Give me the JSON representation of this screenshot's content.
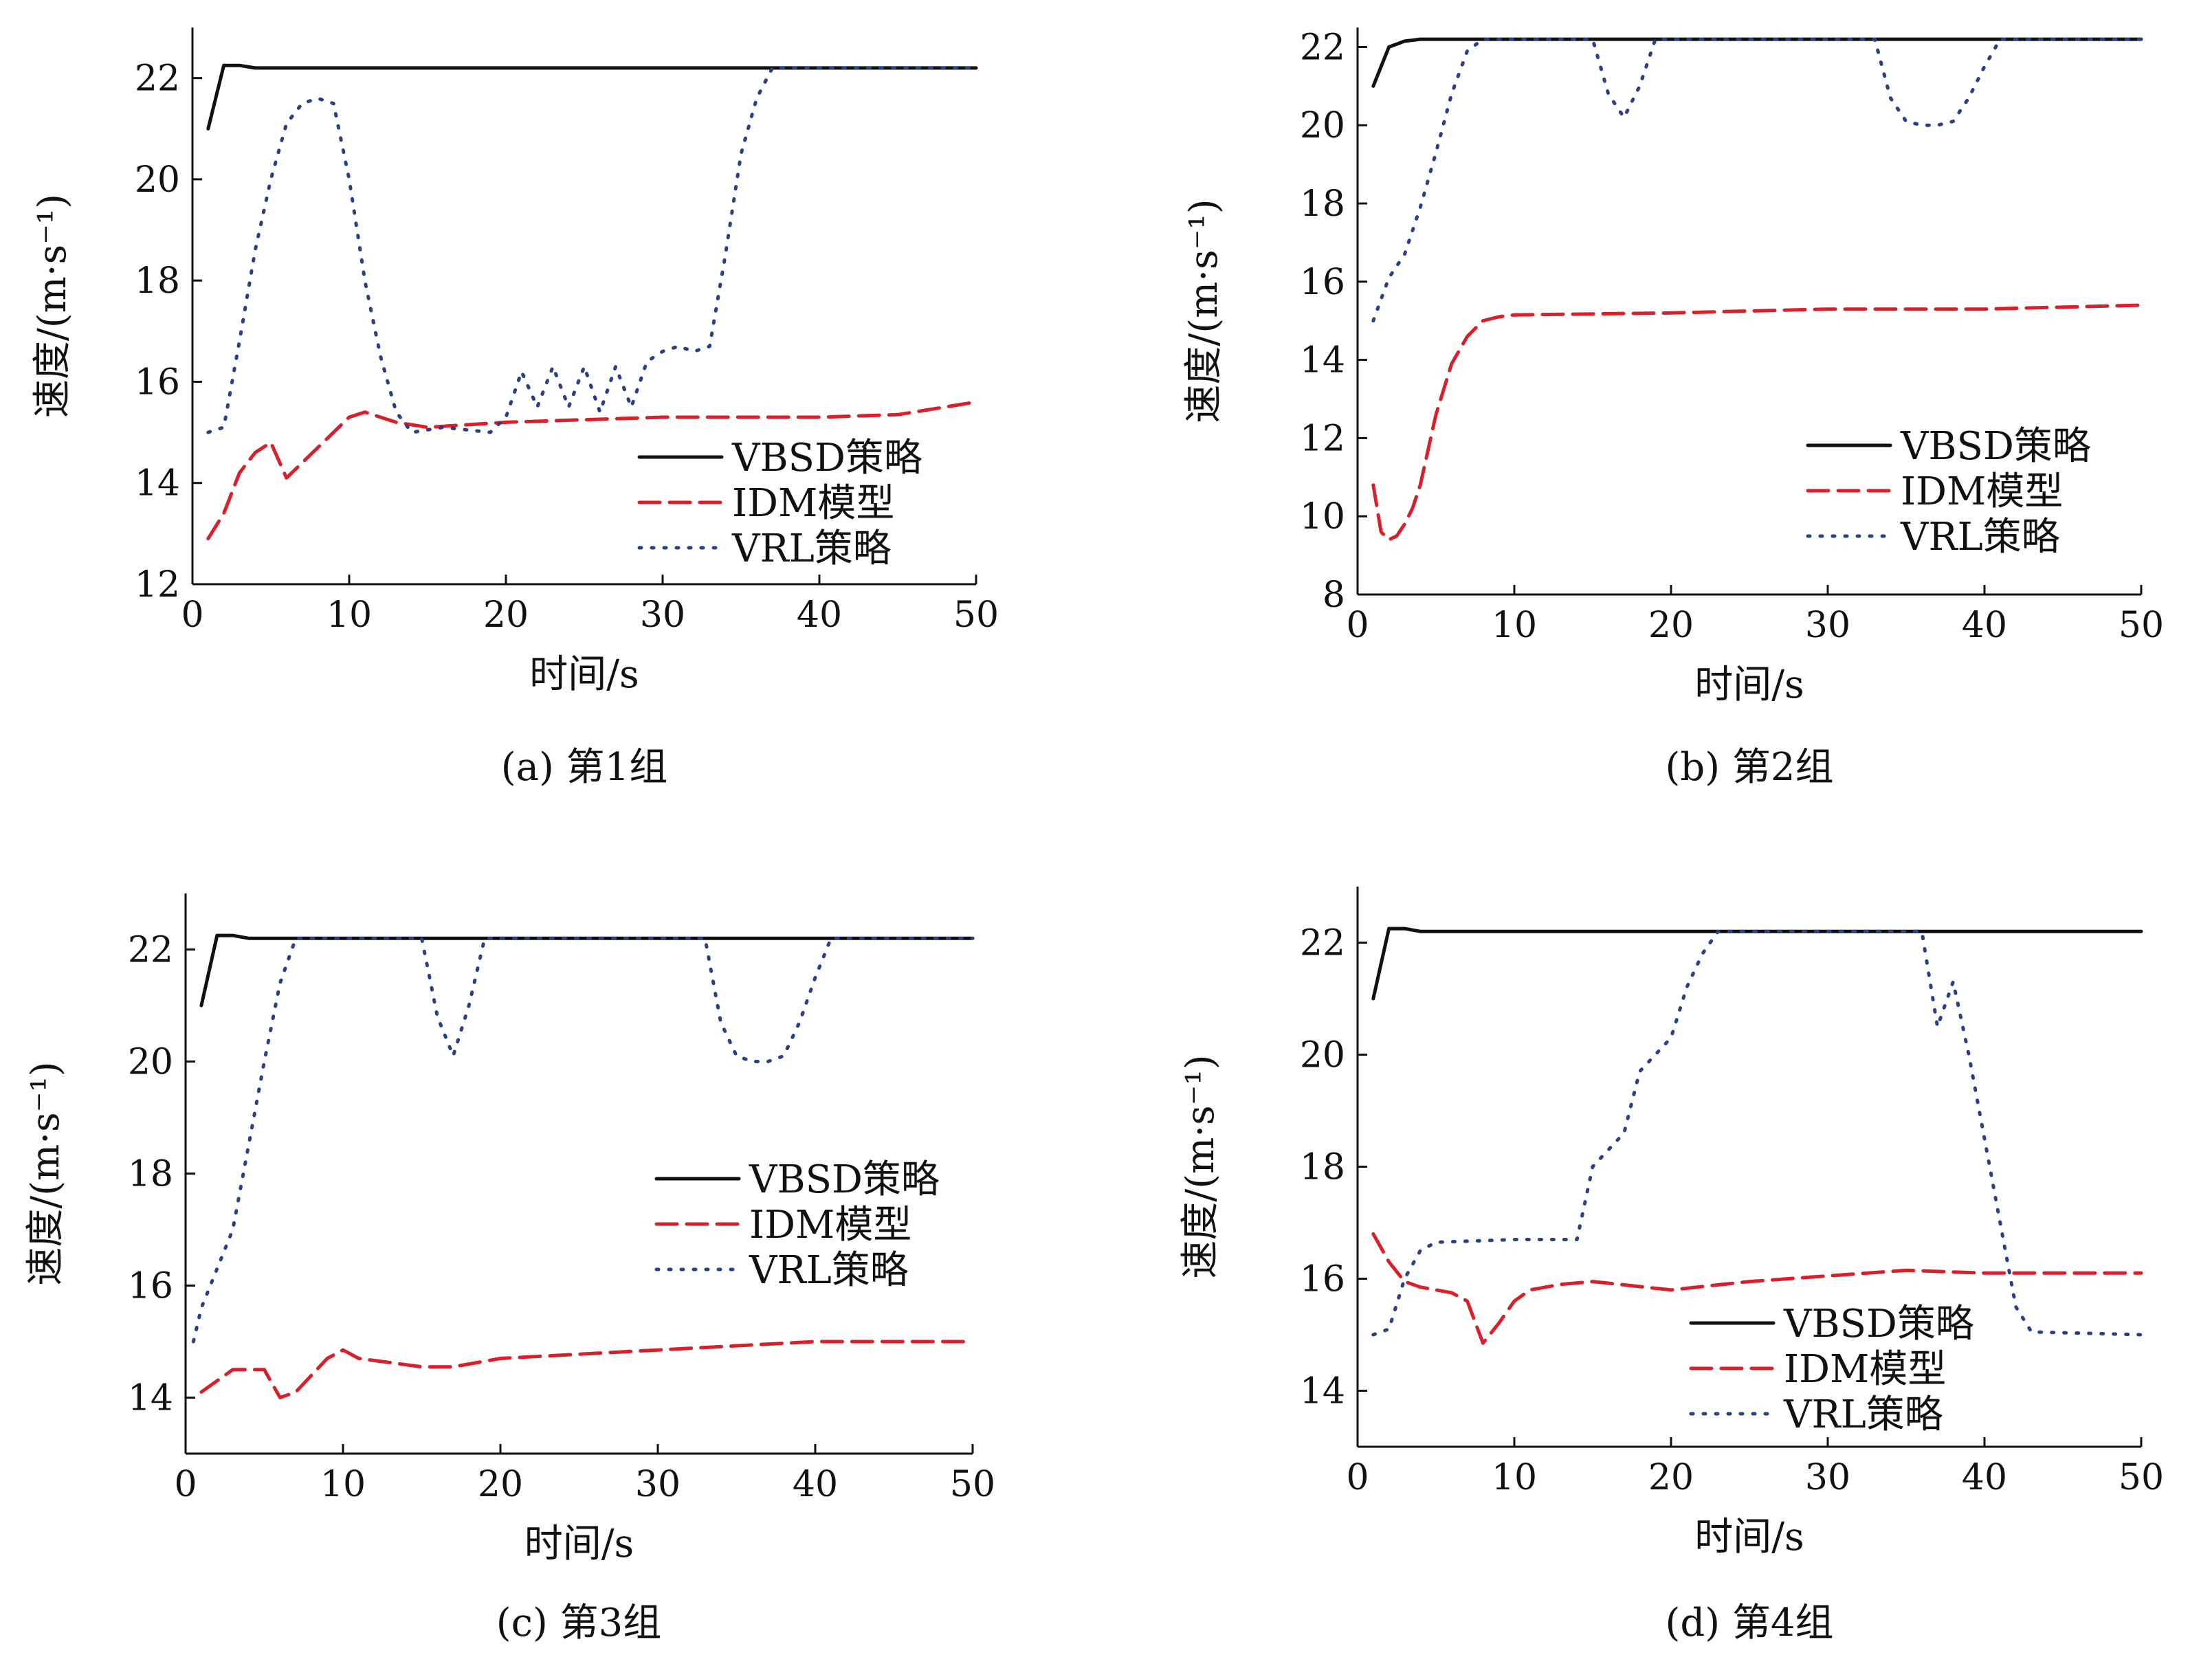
{
  "figure": {
    "series_styles": [
      {
        "key": "vbsd",
        "color": "#111111",
        "dash": "none"
      },
      {
        "key": "idm",
        "color": "#d9202a",
        "dash": "dashed"
      },
      {
        "key": "vrl",
        "color": "#2b3f86",
        "dash": "dotted"
      }
    ]
  },
  "chart_data": [
    {
      "type": "line",
      "caption": "(a) 第1组",
      "xlabel": "时间/s",
      "ylabel": "速度/(m·s⁻¹)",
      "xlim": [
        0,
        50
      ],
      "ylim": [
        12,
        23
      ],
      "xticks": [
        0,
        10,
        20,
        30,
        40,
        50
      ],
      "yticks": [
        12,
        14,
        16,
        18,
        20,
        22
      ],
      "grid": false,
      "legend_position": "bottom-right",
      "series": [
        {
          "name": "VBSD策略",
          "x": [
            1,
            2,
            3,
            4,
            50
          ],
          "y": [
            21.0,
            22.25,
            22.25,
            22.2,
            22.2
          ]
        },
        {
          "name": "IDM模型",
          "x": [
            1,
            2,
            3,
            4,
            5,
            6,
            7,
            8,
            9,
            10,
            11,
            12,
            13,
            15,
            20,
            30,
            40,
            45,
            48,
            50
          ],
          "y": [
            12.9,
            13.4,
            14.2,
            14.6,
            14.8,
            14.1,
            14.4,
            14.7,
            15.0,
            15.3,
            15.4,
            15.3,
            15.2,
            15.1,
            15.2,
            15.3,
            15.3,
            15.35,
            15.5,
            15.6
          ]
        },
        {
          "name": "VRL策略",
          "x": [
            1,
            2,
            3,
            4,
            5,
            6,
            7,
            8,
            9,
            10,
            11,
            12,
            13,
            14,
            16,
            19,
            20,
            21,
            22,
            23,
            24,
            25,
            26,
            27,
            28,
            29,
            30,
            31,
            32,
            33,
            34,
            35,
            36,
            37,
            50
          ],
          "y": [
            15.0,
            15.1,
            16.8,
            18.6,
            20.0,
            21.1,
            21.5,
            21.6,
            21.5,
            20.0,
            18.0,
            16.5,
            15.4,
            15.0,
            15.1,
            15.0,
            15.3,
            16.2,
            15.5,
            16.3,
            15.5,
            16.3,
            15.4,
            16.3,
            15.5,
            16.4,
            16.6,
            16.7,
            16.6,
            16.7,
            18.5,
            20.5,
            21.6,
            22.2,
            22.2
          ]
        }
      ]
    },
    {
      "type": "line",
      "caption": "(b) 第2组",
      "xlabel": "时间/s",
      "ylabel": "速度/(m·s⁻¹)",
      "xlim": [
        0,
        50
      ],
      "ylim": [
        8,
        22.5
      ],
      "xticks": [
        0,
        10,
        20,
        30,
        40,
        50
      ],
      "yticks": [
        8,
        10,
        12,
        14,
        16,
        18,
        20,
        22
      ],
      "grid": false,
      "legend_position": "bottom-right",
      "series": [
        {
          "name": "VBSD策略",
          "x": [
            1,
            2,
            3,
            4,
            5,
            50
          ],
          "y": [
            21.0,
            22.0,
            22.15,
            22.2,
            22.2,
            22.2
          ]
        },
        {
          "name": "IDM模型",
          "x": [
            1,
            1.5,
            2,
            2.5,
            3,
            3.5,
            4,
            5,
            6,
            7,
            8,
            9,
            10,
            20,
            30,
            40,
            50
          ],
          "y": [
            10.8,
            9.6,
            9.4,
            9.5,
            9.8,
            10.2,
            10.8,
            12.6,
            13.9,
            14.6,
            15.0,
            15.1,
            15.15,
            15.2,
            15.3,
            15.3,
            15.4
          ]
        },
        {
          "name": "VRL策略",
          "x": [
            1,
            2,
            3,
            4,
            5,
            6,
            7,
            8,
            15,
            16,
            17,
            18,
            19,
            33,
            34,
            35,
            36,
            37,
            38,
            39,
            40,
            41,
            50
          ],
          "y": [
            15.0,
            16.1,
            16.7,
            17.9,
            19.3,
            20.8,
            21.9,
            22.2,
            22.2,
            20.8,
            20.2,
            21.0,
            22.2,
            22.2,
            20.7,
            20.1,
            20.0,
            20.0,
            20.1,
            20.7,
            21.5,
            22.2,
            22.2
          ]
        }
      ]
    },
    {
      "type": "line",
      "caption": "(c) 第3组",
      "xlabel": "时间/s",
      "ylabel": "速度/(m·s⁻¹)",
      "xlim": [
        0,
        50
      ],
      "ylim": [
        13,
        23
      ],
      "xticks": [
        0,
        10,
        20,
        30,
        40,
        50
      ],
      "yticks": [
        14,
        16,
        18,
        20,
        22
      ],
      "grid": false,
      "legend_position": "right",
      "series": [
        {
          "name": "VBSD策略",
          "x": [
            1,
            2,
            3,
            4,
            50
          ],
          "y": [
            21.0,
            22.25,
            22.25,
            22.2,
            22.2
          ]
        },
        {
          "name": "IDM模型",
          "x": [
            1,
            2,
            3,
            4,
            5,
            6,
            7,
            8,
            9,
            10,
            11,
            15,
            17,
            20,
            30,
            40,
            50
          ],
          "y": [
            14.1,
            14.3,
            14.5,
            14.5,
            14.5,
            14.0,
            14.1,
            14.4,
            14.7,
            14.85,
            14.7,
            14.55,
            14.55,
            14.7,
            14.85,
            15.0,
            15.0
          ]
        },
        {
          "name": "VRL策略",
          "x": [
            0.5,
            1,
            2,
            3,
            4,
            5,
            6,
            7,
            15,
            16,
            17,
            18,
            19,
            33,
            34,
            35,
            36,
            37,
            38,
            39,
            40,
            41,
            50
          ],
          "y": [
            15.0,
            15.6,
            16.3,
            17.0,
            18.5,
            20.0,
            21.4,
            22.2,
            22.2,
            20.8,
            20.1,
            21.0,
            22.2,
            22.2,
            20.7,
            20.1,
            20.0,
            20.0,
            20.1,
            20.7,
            21.5,
            22.2,
            22.2
          ]
        }
      ]
    },
    {
      "type": "line",
      "caption": "(d) 第4组",
      "xlabel": "时间/s",
      "ylabel": "速度/(m·s⁻¹)",
      "xlim": [
        0,
        50
      ],
      "ylim": [
        13,
        23
      ],
      "xticks": [
        0,
        10,
        20,
        30,
        40,
        50
      ],
      "yticks": [
        14,
        16,
        18,
        20,
        22
      ],
      "grid": false,
      "legend_position": "bottom-right",
      "series": [
        {
          "name": "VBSD策略",
          "x": [
            1,
            2,
            3,
            4,
            50
          ],
          "y": [
            21.0,
            22.25,
            22.25,
            22.2,
            22.2
          ]
        },
        {
          "name": "IDM模型",
          "x": [
            1,
            2,
            3,
            4,
            5,
            6,
            7,
            8,
            9,
            10,
            11,
            13,
            15,
            20,
            25,
            30,
            35,
            40,
            50
          ],
          "y": [
            16.8,
            16.3,
            15.95,
            15.85,
            15.8,
            15.75,
            15.6,
            14.85,
            15.2,
            15.6,
            15.8,
            15.9,
            15.95,
            15.8,
            15.95,
            16.05,
            16.15,
            16.1,
            16.1
          ]
        },
        {
          "name": "VRL策略",
          "x": [
            1,
            2,
            3,
            4,
            5,
            10,
            14,
            15,
            16,
            17,
            18,
            19,
            20,
            21,
            22,
            23,
            36,
            37,
            38,
            39,
            40,
            41,
            42,
            43,
            50
          ],
          "y": [
            15.0,
            15.1,
            16.0,
            16.5,
            16.65,
            16.7,
            16.7,
            18.0,
            18.3,
            18.6,
            19.7,
            20.0,
            20.3,
            21.2,
            21.8,
            22.2,
            22.2,
            20.5,
            21.3,
            20.0,
            18.5,
            17.0,
            15.5,
            15.05,
            15.0
          ]
        }
      ]
    }
  ]
}
